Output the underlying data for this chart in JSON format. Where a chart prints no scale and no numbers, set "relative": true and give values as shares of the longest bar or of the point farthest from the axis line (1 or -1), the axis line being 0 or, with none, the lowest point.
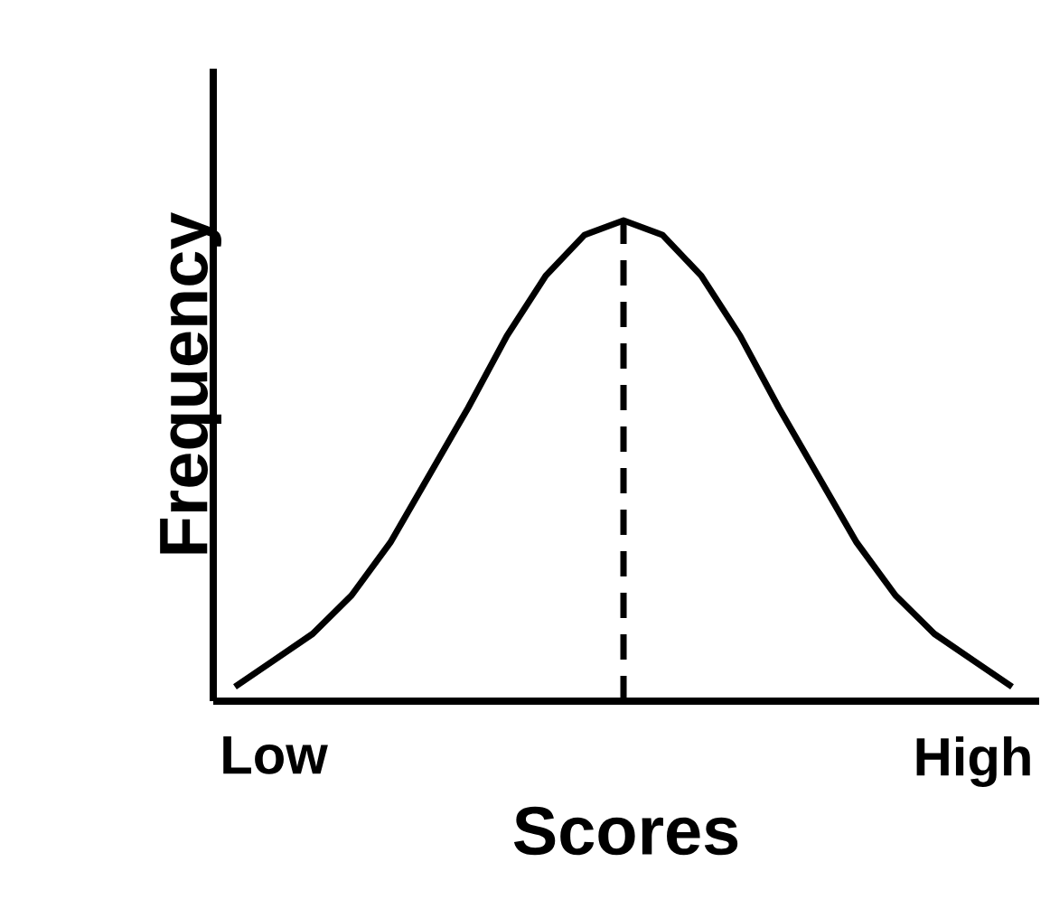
{
  "chart_data": {
    "type": "line",
    "relative": true,
    "xlabel": "Scores",
    "ylabel": "Frequency",
    "categories": [
      null,
      "Low",
      null,
      null,
      null,
      null,
      null,
      null,
      null,
      null,
      null,
      null,
      null,
      null,
      null,
      null,
      null,
      null,
      null,
      "High",
      null
    ],
    "tick_labels": "x",
    "values": [
      0.03,
      0.085,
      0.14,
      0.22,
      0.33,
      0.47,
      0.61,
      0.76,
      0.885,
      0.97,
      1,
      0.97,
      0.885,
      0.76,
      0.61,
      0.47,
      0.33,
      0.22,
      0.14,
      0.085,
      0.03
    ],
    "color": "#000000"
  }
}
